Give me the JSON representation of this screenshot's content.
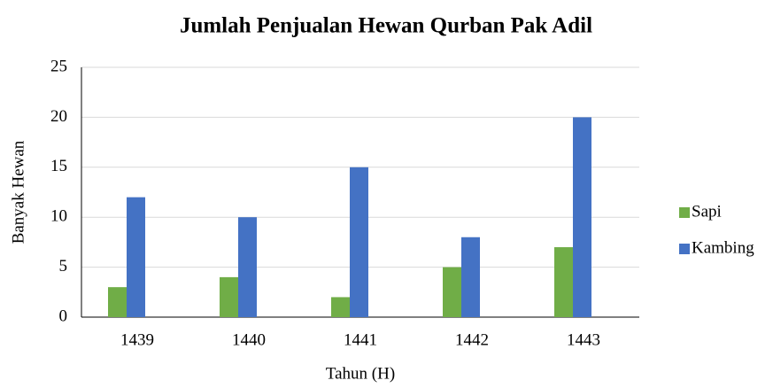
{
  "chart_data": {
    "type": "bar",
    "title": "Jumlah Penjualan Hewan Qurban Pak Adil",
    "x_label": "Tahun (H)",
    "y_label": "Banyak Hewan",
    "categories": [
      "1439",
      "1440",
      "1441",
      "1442",
      "1443"
    ],
    "series": [
      {
        "name": "Sapi",
        "color": "#70ad47",
        "values": [
          3,
          4,
          2,
          5,
          7
        ]
      },
      {
        "name": "Kambing",
        "color": "#4472c4",
        "values": [
          12,
          10,
          15,
          8,
          20
        ]
      }
    ],
    "ylim": [
      0,
      25
    ],
    "yticks": [
      0,
      5,
      10,
      15,
      20,
      25
    ],
    "grid": true,
    "legend": "right"
  }
}
